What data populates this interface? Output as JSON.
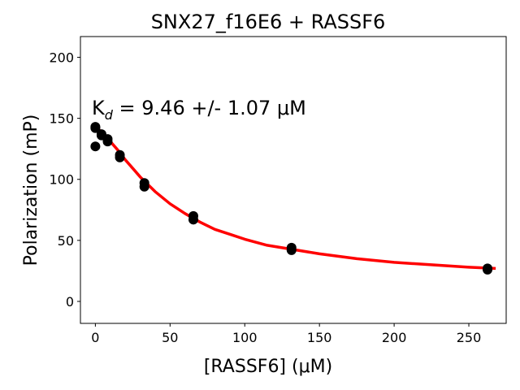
{
  "chart_data": {
    "type": "scatter",
    "title": "SNX27_f16E6 + RASSF6",
    "xlabel": "[RASSF6] (μM)",
    "ylabel": "Polarization (mP)",
    "xlim": [
      -10,
      275
    ],
    "ylim": [
      -18,
      217
    ],
    "xticks": [
      0,
      50,
      100,
      150,
      200,
      250
    ],
    "yticks": [
      0,
      50,
      100,
      150,
      200
    ],
    "annotation": {
      "prefix": "K",
      "subscript": "d",
      "text": " = 9.46 +/- 1.07 μM"
    },
    "points": [
      {
        "x": 0,
        "y": 143
      },
      {
        "x": 0,
        "y": 142
      },
      {
        "x": 0,
        "y": 127
      },
      {
        "x": 4.1,
        "y": 137
      },
      {
        "x": 4.1,
        "y": 136
      },
      {
        "x": 8.2,
        "y": 133
      },
      {
        "x": 8.2,
        "y": 131
      },
      {
        "x": 16.4,
        "y": 120
      },
      {
        "x": 16.4,
        "y": 118
      },
      {
        "x": 32.8,
        "y": 97
      },
      {
        "x": 32.8,
        "y": 94
      },
      {
        "x": 65.6,
        "y": 70
      },
      {
        "x": 65.6,
        "y": 67
      },
      {
        "x": 131.3,
        "y": 44
      },
      {
        "x": 131.3,
        "y": 42
      },
      {
        "x": 262.5,
        "y": 27
      },
      {
        "x": 262.5,
        "y": 26
      }
    ],
    "fit": {
      "color": "#ff0000",
      "x": [
        0,
        5,
        10,
        15,
        20,
        25,
        30,
        35,
        40,
        50,
        60,
        70,
        80,
        90,
        100,
        115,
        130,
        150,
        175,
        200,
        225,
        250,
        268
      ],
      "y": [
        143,
        138,
        131,
        124,
        116,
        109,
        102,
        96,
        90,
        80,
        72,
        65,
        59,
        55,
        51,
        46,
        43,
        39,
        35,
        32,
        30,
        28,
        27
      ]
    },
    "marker_color": "#000000",
    "grid": false
  }
}
